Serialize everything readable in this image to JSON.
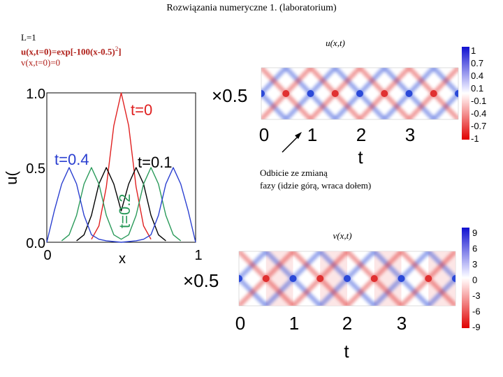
{
  "title": "Rozwiązania numeryczne 1. (laboratorium)",
  "initial_conditions": {
    "L": "L=1",
    "u0": "u(x,t=0)=exp[-100(x-0.5)",
    "u0_exp": "2",
    "u0_tail": "]",
    "v0": "v(x,t=0)=0"
  },
  "annotation": {
    "line1": "Odbicie ze zmianą",
    "line2": "fazy (idzie górą, wraca dołem)"
  },
  "colors": {
    "t0": "#e02020",
    "t01": "#000000",
    "t02": "#2a9a5a",
    "t04": "#2a3fd0"
  },
  "chart_data": [
    {
      "type": "line",
      "xlabel": "x",
      "ylabel": "u(",
      "xlim": [
        0,
        1
      ],
      "ylim": [
        0,
        1
      ],
      "xticks": [
        "0",
        "1"
      ],
      "yticks": [
        "0.0",
        "0.5",
        "1.0"
      ],
      "series": [
        {
          "name": "t=0",
          "x": [
            0.3,
            0.35,
            0.4,
            0.45,
            0.5,
            0.55,
            0.6,
            0.65,
            0.7
          ],
          "values": [
            0.02,
            0.11,
            0.37,
            0.78,
            1.0,
            0.78,
            0.37,
            0.11,
            0.02
          ]
        },
        {
          "name": "t=0.1",
          "x": [
            0.2,
            0.25,
            0.3,
            0.35,
            0.4,
            0.45,
            0.5,
            0.55,
            0.6,
            0.65,
            0.7,
            0.75,
            0.8
          ],
          "values": [
            0.01,
            0.05,
            0.18,
            0.39,
            0.5,
            0.39,
            0.21,
            0.39,
            0.5,
            0.39,
            0.18,
            0.05,
            0.01
          ]
        },
        {
          "name": "t=0.2",
          "x": [
            0.1,
            0.15,
            0.2,
            0.25,
            0.3,
            0.35,
            0.4,
            0.45,
            0.5,
            0.55,
            0.6,
            0.65,
            0.7,
            0.75,
            0.8,
            0.85,
            0.9
          ],
          "values": [
            0.01,
            0.05,
            0.18,
            0.39,
            0.5,
            0.39,
            0.18,
            0.05,
            0.02,
            0.05,
            0.18,
            0.39,
            0.5,
            0.39,
            0.18,
            0.05,
            0.01
          ]
        },
        {
          "name": "t=0.4",
          "x": [
            0.0,
            0.05,
            0.1,
            0.15,
            0.2,
            0.25,
            0.3,
            0.35,
            0.4,
            0.5,
            0.6,
            0.65,
            0.7,
            0.75,
            0.8,
            0.85,
            0.9,
            0.95,
            1.0
          ],
          "values": [
            0.0,
            0.21,
            0.39,
            0.5,
            0.39,
            0.18,
            0.05,
            0.02,
            0.01,
            0.0,
            0.01,
            0.02,
            0.05,
            0.18,
            0.39,
            0.5,
            0.39,
            0.21,
            0.0
          ]
        }
      ],
      "labels": [
        "t=0",
        "t=0.1",
        "t=0.2",
        "t=0.4"
      ]
    },
    {
      "type": "heatmap",
      "title": "u(x,t)",
      "xlabel": "t",
      "ylabel_prefix": "×0.5",
      "xticks": [
        "0",
        "1",
        "2",
        "3"
      ],
      "xlim": [
        0,
        4
      ],
      "colorbar": {
        "ticks": [
          "1",
          "0.7",
          "0.4",
          "0.1",
          "-0.1",
          "-0.4",
          "-0.7",
          "-1"
        ],
        "min": -1,
        "max": 1
      }
    },
    {
      "type": "heatmap",
      "title": "v(x,t)",
      "xlabel": "t",
      "ylabel_prefix": "×0.5",
      "xticks": [
        "0",
        "1",
        "2",
        "3"
      ],
      "xlim": [
        0,
        4
      ],
      "colorbar": {
        "ticks": [
          "9",
          "6",
          "3",
          "0",
          "-3",
          "-6",
          "-9"
        ],
        "min": -9,
        "max": 9
      }
    }
  ]
}
